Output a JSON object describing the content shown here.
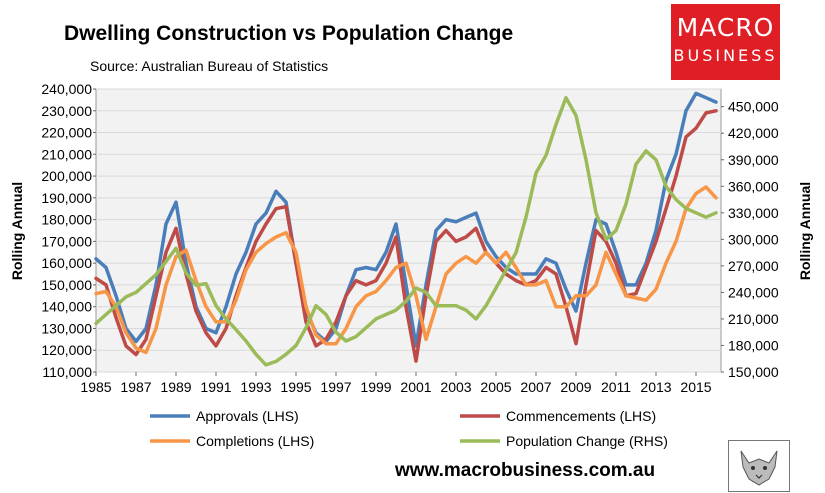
{
  "title": "Dwelling Construction vs Population Change",
  "source": "Source: Australian Bureau of Statistics",
  "logo": {
    "line1": "MACRO",
    "line2": "BUSINESS"
  },
  "website": "www.macrobusiness.com.au",
  "chart_data": {
    "type": "line",
    "ylabel_left": "Rolling Annual",
    "ylabel_right": "Rolling Annual",
    "x_ticks": [
      "1985",
      "1987",
      "1989",
      "1991",
      "1993",
      "1995",
      "1997",
      "1999",
      "2001",
      "2003",
      "2005",
      "2007",
      "2009",
      "2011",
      "2013",
      "2015"
    ],
    "y_left_ticks": [
      "110,000",
      "120,000",
      "130,000",
      "140,000",
      "150,000",
      "160,000",
      "170,000",
      "180,000",
      "190,000",
      "200,000",
      "210,000",
      "220,000",
      "230,000",
      "240,000"
    ],
    "y_right_ticks": [
      "150,000",
      "180,000",
      "210,000",
      "240,000",
      "270,000",
      "300,000",
      "330,000",
      "360,000",
      "390,000",
      "420,000",
      "450,000"
    ],
    "ylim_left": [
      110000,
      240000
    ],
    "ylim_right": [
      150000,
      470000
    ],
    "xlim": [
      1985,
      2016.25
    ],
    "legend_position": "bottom",
    "colors": {
      "approvals": "#4a7ebb",
      "commencements": "#be4b48",
      "completions": "#f79646",
      "population": "#9bbb59"
    },
    "series": [
      {
        "name": "Approvals (LHS)",
        "axis": "left",
        "color": "#4a7ebb",
        "points": [
          [
            1985,
            162000
          ],
          [
            1985.5,
            158000
          ],
          [
            1986,
            145000
          ],
          [
            1986.5,
            130000
          ],
          [
            1987,
            124000
          ],
          [
            1987.5,
            130000
          ],
          [
            1988,
            150000
          ],
          [
            1988.5,
            178000
          ],
          [
            1989,
            188000
          ],
          [
            1989.5,
            160000
          ],
          [
            1990,
            140000
          ],
          [
            1990.5,
            130000
          ],
          [
            1991,
            128000
          ],
          [
            1991.5,
            140000
          ],
          [
            1992,
            155000
          ],
          [
            1992.5,
            165000
          ],
          [
            1993,
            178000
          ],
          [
            1993.5,
            183000
          ],
          [
            1994,
            193000
          ],
          [
            1994.5,
            188000
          ],
          [
            1995,
            160000
          ],
          [
            1995.5,
            138000
          ],
          [
            1996,
            128000
          ],
          [
            1996.5,
            124000
          ],
          [
            1997,
            130000
          ],
          [
            1997.5,
            145000
          ],
          [
            1998,
            157000
          ],
          [
            1998.5,
            158000
          ],
          [
            1999,
            157000
          ],
          [
            1999.5,
            165000
          ],
          [
            2000,
            178000
          ],
          [
            2000.5,
            150000
          ],
          [
            2001,
            122000
          ],
          [
            2001.5,
            150000
          ],
          [
            2002,
            175000
          ],
          [
            2002.5,
            180000
          ],
          [
            2003,
            179000
          ],
          [
            2003.5,
            181000
          ],
          [
            2004,
            183000
          ],
          [
            2004.5,
            170000
          ],
          [
            2005,
            163000
          ],
          [
            2005.5,
            158000
          ],
          [
            2006,
            155000
          ],
          [
            2006.5,
            155000
          ],
          [
            2007,
            155000
          ],
          [
            2007.5,
            162000
          ],
          [
            2008,
            160000
          ],
          [
            2008.5,
            148000
          ],
          [
            2009,
            138000
          ],
          [
            2009.5,
            160000
          ],
          [
            2010,
            180000
          ],
          [
            2010.5,
            178000
          ],
          [
            2011,
            165000
          ],
          [
            2011.5,
            150000
          ],
          [
            2012,
            150000
          ],
          [
            2012.5,
            160000
          ],
          [
            2013,
            175000
          ],
          [
            2013.5,
            198000
          ],
          [
            2014,
            210000
          ],
          [
            2014.5,
            230000
          ],
          [
            2015,
            238000
          ],
          [
            2015.5,
            236000
          ],
          [
            2016,
            234000
          ]
        ]
      },
      {
        "name": "Commencements (LHS)",
        "axis": "left",
        "color": "#be4b48",
        "points": [
          [
            1985,
            153000
          ],
          [
            1985.5,
            150000
          ],
          [
            1986,
            135000
          ],
          [
            1986.5,
            122000
          ],
          [
            1987,
            118000
          ],
          [
            1987.5,
            125000
          ],
          [
            1988,
            145000
          ],
          [
            1988.5,
            165000
          ],
          [
            1989,
            176000
          ],
          [
            1989.5,
            155000
          ],
          [
            1990,
            138000
          ],
          [
            1990.5,
            128000
          ],
          [
            1991,
            122000
          ],
          [
            1991.5,
            130000
          ],
          [
            1992,
            145000
          ],
          [
            1992.5,
            158000
          ],
          [
            1993,
            170000
          ],
          [
            1993.5,
            178000
          ],
          [
            1994,
            185000
          ],
          [
            1994.5,
            186000
          ],
          [
            1995,
            160000
          ],
          [
            1995.5,
            133000
          ],
          [
            1996,
            122000
          ],
          [
            1996.5,
            125000
          ],
          [
            1997,
            133000
          ],
          [
            1997.5,
            145000
          ],
          [
            1998,
            152000
          ],
          [
            1998.5,
            150000
          ],
          [
            1999,
            152000
          ],
          [
            1999.5,
            160000
          ],
          [
            2000,
            172000
          ],
          [
            2000.5,
            140000
          ],
          [
            2001,
            115000
          ],
          [
            2001.5,
            145000
          ],
          [
            2002,
            170000
          ],
          [
            2002.5,
            175000
          ],
          [
            2003,
            170000
          ],
          [
            2003.5,
            172000
          ],
          [
            2004,
            176000
          ],
          [
            2004.5,
            165000
          ],
          [
            2005,
            160000
          ],
          [
            2005.5,
            155000
          ],
          [
            2006,
            152000
          ],
          [
            2006.5,
            150000
          ],
          [
            2007,
            152000
          ],
          [
            2007.5,
            158000
          ],
          [
            2008,
            155000
          ],
          [
            2008.5,
            140000
          ],
          [
            2009,
            123000
          ],
          [
            2009.5,
            150000
          ],
          [
            2010,
            175000
          ],
          [
            2010.5,
            170000
          ],
          [
            2011,
            160000
          ],
          [
            2011.5,
            145000
          ],
          [
            2012,
            146000
          ],
          [
            2012.5,
            158000
          ],
          [
            2013,
            170000
          ],
          [
            2013.5,
            185000
          ],
          [
            2014,
            200000
          ],
          [
            2014.5,
            218000
          ],
          [
            2015,
            222000
          ],
          [
            2015.5,
            229000
          ],
          [
            2016,
            230000
          ]
        ]
      },
      {
        "name": "Completions (LHS)",
        "axis": "left",
        "color": "#f79646",
        "points": [
          [
            1985,
            146000
          ],
          [
            1985.5,
            147000
          ],
          [
            1986,
            140000
          ],
          [
            1986.5,
            128000
          ],
          [
            1987,
            121000
          ],
          [
            1987.5,
            119000
          ],
          [
            1988,
            130000
          ],
          [
            1988.5,
            150000
          ],
          [
            1989,
            163000
          ],
          [
            1989.5,
            166000
          ],
          [
            1990,
            152000
          ],
          [
            1990.5,
            140000
          ],
          [
            1991,
            133000
          ],
          [
            1991.5,
            133000
          ],
          [
            1992,
            143000
          ],
          [
            1992.5,
            157000
          ],
          [
            1993,
            165000
          ],
          [
            1993.5,
            169000
          ],
          [
            1994,
            172000
          ],
          [
            1994.5,
            174000
          ],
          [
            1995,
            165000
          ],
          [
            1995.5,
            140000
          ],
          [
            1996,
            127000
          ],
          [
            1996.5,
            123000
          ],
          [
            1997,
            123000
          ],
          [
            1997.5,
            130000
          ],
          [
            1998,
            140000
          ],
          [
            1998.5,
            145000
          ],
          [
            1999,
            147000
          ],
          [
            1999.5,
            152000
          ],
          [
            2000,
            158000
          ],
          [
            2000.5,
            160000
          ],
          [
            2001,
            145000
          ],
          [
            2001.5,
            125000
          ],
          [
            2002,
            140000
          ],
          [
            2002.5,
            155000
          ],
          [
            2003,
            160000
          ],
          [
            2003.5,
            163000
          ],
          [
            2004,
            160000
          ],
          [
            2004.5,
            165000
          ],
          [
            2005,
            160000
          ],
          [
            2005.5,
            165000
          ],
          [
            2006,
            158000
          ],
          [
            2006.5,
            150000
          ],
          [
            2007,
            150000
          ],
          [
            2007.5,
            152000
          ],
          [
            2008,
            140000
          ],
          [
            2008.5,
            140000
          ],
          [
            2009,
            145000
          ],
          [
            2009.5,
            145000
          ],
          [
            2010,
            150000
          ],
          [
            2010.5,
            165000
          ],
          [
            2011,
            155000
          ],
          [
            2011.5,
            145000
          ],
          [
            2012,
            144000
          ],
          [
            2012.5,
            143000
          ],
          [
            2013,
            148000
          ],
          [
            2013.5,
            160000
          ],
          [
            2014,
            170000
          ],
          [
            2014.5,
            185000
          ],
          [
            2015,
            192000
          ],
          [
            2015.5,
            195000
          ],
          [
            2016,
            190000
          ]
        ]
      },
      {
        "name": "Population Change (RHS)",
        "axis": "right",
        "color": "#9bbb59",
        "points": [
          [
            1985,
            205000
          ],
          [
            1985.5,
            215000
          ],
          [
            1986,
            225000
          ],
          [
            1986.5,
            235000
          ],
          [
            1987,
            240000
          ],
          [
            1987.5,
            250000
          ],
          [
            1988,
            260000
          ],
          [
            1988.5,
            275000
          ],
          [
            1989,
            290000
          ],
          [
            1989.5,
            262000
          ],
          [
            1990,
            248000
          ],
          [
            1990.5,
            250000
          ],
          [
            1991,
            225000
          ],
          [
            1991.5,
            210000
          ],
          [
            1992,
            198000
          ],
          [
            1992.5,
            185000
          ],
          [
            1993,
            170000
          ],
          [
            1993.5,
            158000
          ],
          [
            1994,
            162000
          ],
          [
            1994.5,
            170000
          ],
          [
            1995,
            180000
          ],
          [
            1995.5,
            200000
          ],
          [
            1996,
            225000
          ],
          [
            1996.5,
            215000
          ],
          [
            1997,
            195000
          ],
          [
            1997.5,
            185000
          ],
          [
            1998,
            190000
          ],
          [
            1998.5,
            200000
          ],
          [
            1999,
            210000
          ],
          [
            1999.5,
            215000
          ],
          [
            2000,
            220000
          ],
          [
            2000.5,
            230000
          ],
          [
            2001,
            245000
          ],
          [
            2001.5,
            240000
          ],
          [
            2002,
            225000
          ],
          [
            2002.5,
            225000
          ],
          [
            2003,
            225000
          ],
          [
            2003.5,
            220000
          ],
          [
            2004,
            210000
          ],
          [
            2004.5,
            225000
          ],
          [
            2005,
            245000
          ],
          [
            2005.5,
            265000
          ],
          [
            2006,
            285000
          ],
          [
            2006.5,
            325000
          ],
          [
            2007,
            375000
          ],
          [
            2007.5,
            395000
          ],
          [
            2008,
            430000
          ],
          [
            2008.5,
            460000
          ],
          [
            2009,
            440000
          ],
          [
            2009.5,
            390000
          ],
          [
            2010,
            330000
          ],
          [
            2010.5,
            300000
          ],
          [
            2011,
            310000
          ],
          [
            2011.5,
            340000
          ],
          [
            2012,
            385000
          ],
          [
            2012.5,
            400000
          ],
          [
            2013,
            390000
          ],
          [
            2013.5,
            360000
          ],
          [
            2014,
            345000
          ],
          [
            2014.5,
            335000
          ],
          [
            2015,
            330000
          ],
          [
            2015.5,
            325000
          ],
          [
            2016,
            330000
          ]
        ]
      }
    ]
  }
}
